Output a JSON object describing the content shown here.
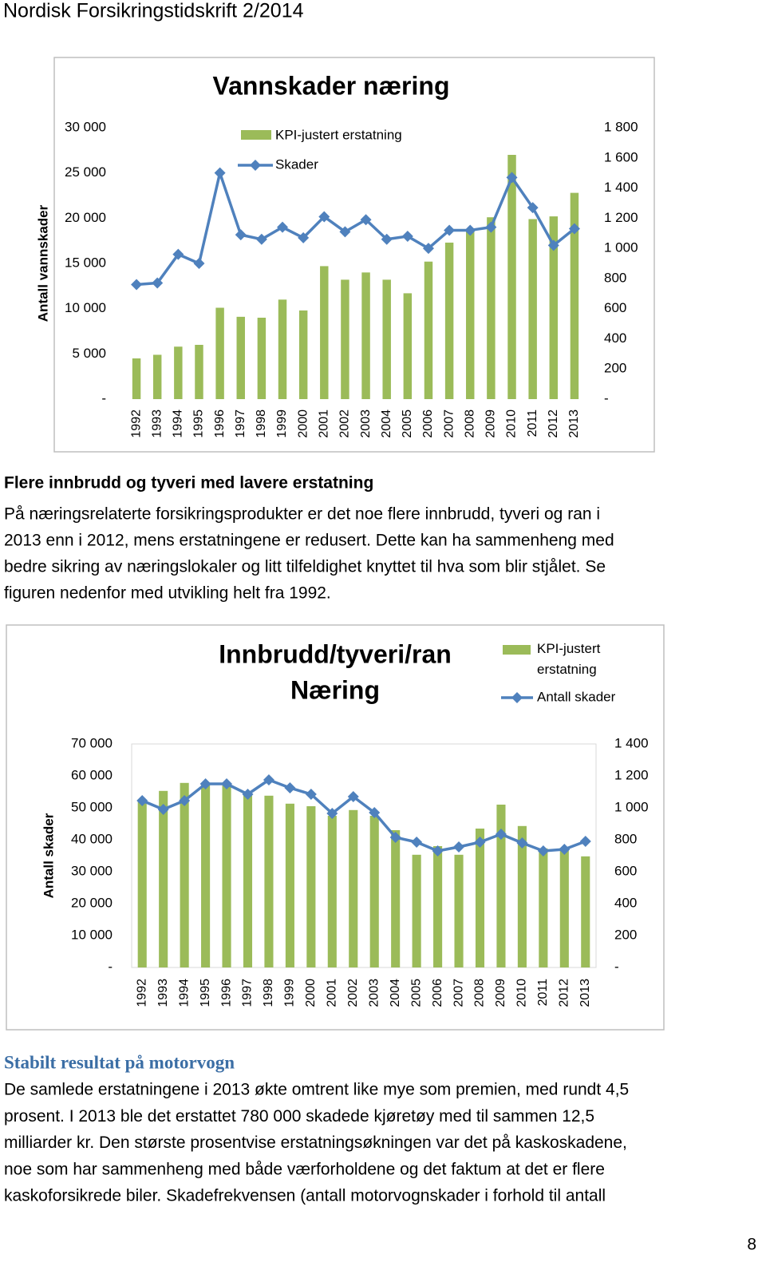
{
  "header": "Nordisk Forsikringstidskrift 2/2014",
  "chart_data": [
    {
      "type": "combo",
      "title": "Vannskader næring",
      "y_label": "Antall vannskader",
      "categories": [
        "1992",
        "1993",
        "1994",
        "1995",
        "1996",
        "1997",
        "1998",
        "1999",
        "2000",
        "2001",
        "2002",
        "2003",
        "2004",
        "2005",
        "2006",
        "2007",
        "2008",
        "2009",
        "2010",
        "2011",
        "2012",
        "2013"
      ],
      "series": [
        {
          "name": "KPI-justert erstatning",
          "kind": "bar",
          "color": "#9bbb59",
          "values": [
            4500,
            4900,
            5800,
            6000,
            10100,
            9100,
            9000,
            11000,
            9800,
            14700,
            13200,
            14000,
            13200,
            11700,
            15200,
            17300,
            18700,
            20100,
            27000,
            19900,
            20200,
            22800
          ]
        },
        {
          "name": "Skader",
          "kind": "line",
          "axis": "y2",
          "color": "#4f81bd",
          "values": [
            760,
            770,
            960,
            900,
            1500,
            1090,
            1060,
            1140,
            1070,
            1210,
            1110,
            1190,
            1060,
            1080,
            1000,
            1120,
            1120,
            1140,
            1470,
            1270,
            1020,
            1130
          ]
        }
      ],
      "ylim": [
        0,
        30000
      ],
      "yticks": [
        {
          "value": 0,
          "label": "-"
        },
        {
          "value": 5000,
          "label": "5 000"
        },
        {
          "value": 10000,
          "label": "10 000"
        },
        {
          "value": 15000,
          "label": "15 000"
        },
        {
          "value": 20000,
          "label": "20 000"
        },
        {
          "value": 25000,
          "label": "25 000"
        },
        {
          "value": 30000,
          "label": "30 000"
        }
      ],
      "y2lim": [
        0,
        1800
      ],
      "y2ticks": [
        {
          "value": 0,
          "label": "-"
        },
        200,
        400,
        600,
        800,
        {
          "value": 1000,
          "label": "1 000"
        },
        {
          "value": 1200,
          "label": "1 200"
        },
        {
          "value": 1400,
          "label": "1 400"
        },
        {
          "value": 1600,
          "label": "1 600"
        },
        {
          "value": 1800,
          "label": "1 800"
        }
      ],
      "grid": false
    },
    {
      "type": "combo",
      "title": [
        "Innbrudd/tyveri/ran",
        "Næring"
      ],
      "y_label": "Antall skader",
      "categories": [
        "1992",
        "1993",
        "1994",
        "1995",
        "1996",
        "1997",
        "1998",
        "1999",
        "2000",
        "2001",
        "2002",
        "2003",
        "2004",
        "2005",
        "2006",
        "2007",
        "2008",
        "2009",
        "2010",
        "2011",
        "2012",
        "2013"
      ],
      "series": [
        {
          "name": "KPI-justert erstatning",
          "kind": "bar",
          "color": "#9bbb59",
          "values": [
            52000,
            55300,
            57800,
            57500,
            57000,
            54300,
            53800,
            51300,
            50500,
            47500,
            49300,
            47500,
            43000,
            35300,
            38000,
            35300,
            43500,
            51000,
            44300,
            37300,
            37500,
            34800
          ]
        },
        {
          "name": "Antall skader",
          "kind": "line",
          "axis": "y2",
          "color": "#4f81bd",
          "values": [
            1045,
            990,
            1045,
            1150,
            1150,
            1085,
            1175,
            1125,
            1085,
            965,
            1070,
            970,
            815,
            785,
            730,
            755,
            785,
            835,
            780,
            730,
            740,
            790
          ]
        }
      ],
      "ylim": [
        0,
        70000
      ],
      "yticks": [
        {
          "value": 0,
          "label": "-"
        },
        {
          "value": 10000,
          "label": "10 000"
        },
        {
          "value": 20000,
          "label": "20 000"
        },
        {
          "value": 30000,
          "label": "30 000"
        },
        {
          "value": 40000,
          "label": "40 000"
        },
        {
          "value": 50000,
          "label": "50 000"
        },
        {
          "value": 60000,
          "label": "60 000"
        },
        {
          "value": 70000,
          "label": "70 000"
        }
      ],
      "y2lim": [
        0,
        1400
      ],
      "y2ticks": [
        {
          "value": 0,
          "label": "-"
        },
        200,
        400,
        600,
        800,
        {
          "value": 1000,
          "label": "1 000"
        },
        {
          "value": 1200,
          "label": "1 200"
        },
        {
          "value": 1400,
          "label": "1 400"
        }
      ],
      "grid": false
    }
  ],
  "sections": [
    {
      "heading": "Flere innbrudd og tyveri med lavere erstatning",
      "lines": [
        "På næringsrelaterte forsikringsprodukter er det noe flere innbrudd, tyveri og ran i",
        "2013 enn i 2012, mens erstatningene er redusert. Dette kan ha sammenheng med",
        "bedre sikring av næringslokaler og litt tilfeldighet knyttet til hva som blir stjålet. Se",
        "figuren nedenfor med utvikling helt fra 1992."
      ]
    },
    {
      "heading": "Stabilt resultat på motorvogn",
      "lines": [
        "De samlede erstatningene i 2013 økte omtrent like mye som premien, med rundt 4,5",
        "prosent. I 2013 ble det erstattet 780 000 skadede kjøretøy med til sammen 12,5",
        "milliarder kr. Den største prosentvise erstatningsøkningen var det på kaskoskadene,",
        "noe som har sammenheng med både værforholdene og det faktum at det er flere",
        "kaskoforsikrede biler. Skadefrekvensen (antall motorvognskader i forhold til antall"
      ]
    }
  ],
  "page_number": 8
}
